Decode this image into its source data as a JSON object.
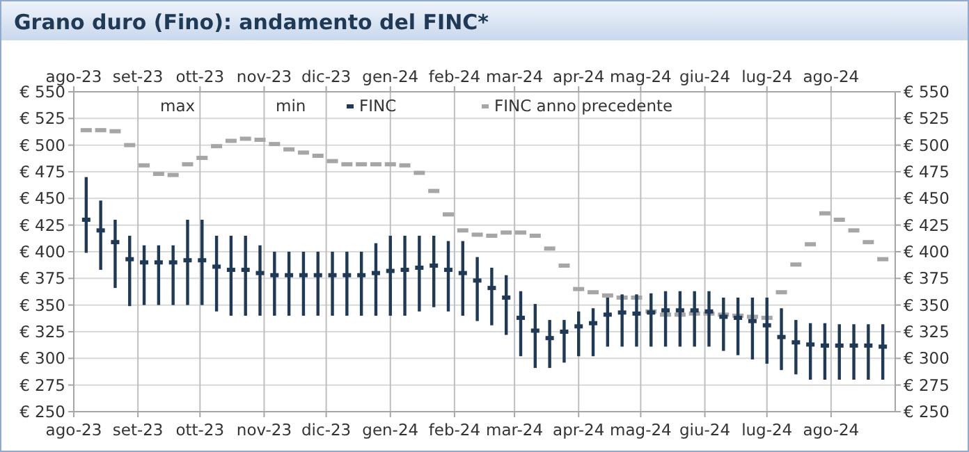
{
  "chart_data": {
    "type": "scatter",
    "title": "Grano duro (Fino): andamento del FINC*",
    "x": [
      "2023-08-07",
      "2023-08-14",
      "2023-08-21",
      "2023-08-28",
      "2023-09-04",
      "2023-09-11",
      "2023-09-18",
      "2023-09-25",
      "2023-10-02",
      "2023-10-09",
      "2023-10-16",
      "2023-10-23",
      "2023-10-30",
      "2023-11-06",
      "2023-11-13",
      "2023-11-20",
      "2023-11-27",
      "2023-12-04",
      "2023-12-11",
      "2023-12-18",
      "2023-12-25",
      "2024-01-01",
      "2024-01-08",
      "2024-01-15",
      "2024-01-22",
      "2024-01-29",
      "2024-02-05",
      "2024-02-12",
      "2024-02-19",
      "2024-02-26",
      "2024-03-04",
      "2024-03-11",
      "2024-03-18",
      "2024-03-25",
      "2024-04-01",
      "2024-04-08",
      "2024-04-15",
      "2024-04-22",
      "2024-04-29",
      "2024-05-06",
      "2024-05-13",
      "2024-05-20",
      "2024-05-27",
      "2024-06-03",
      "2024-06-10",
      "2024-06-17",
      "2024-06-24",
      "2024-07-01",
      "2024-07-08",
      "2024-07-15",
      "2024-07-22",
      "2024-07-29",
      "2024-08-05",
      "2024-08-12",
      "2024-08-19",
      "2024-08-26"
    ],
    "series": [
      {
        "name": "FINC",
        "color": "#1f3a56",
        "values": [
          430,
          420,
          409,
          393,
          390,
          390,
          390,
          392,
          392,
          386,
          383,
          383,
          380,
          378,
          378,
          378,
          378,
          378,
          378,
          378,
          380,
          382,
          383,
          385,
          387,
          383,
          380,
          373,
          366,
          357,
          338,
          326,
          319,
          325,
          330,
          333,
          341,
          343,
          342,
          343,
          345,
          345,
          345,
          344,
          339,
          338,
          335,
          331,
          320,
          315,
          313,
          312,
          312,
          312,
          312,
          311
        ],
        "errors": [
          [
            399,
            470
          ],
          [
            383,
            448
          ],
          [
            366,
            430
          ],
          [
            349,
            415
          ],
          [
            350,
            406
          ],
          [
            350,
            406
          ],
          [
            350,
            406
          ],
          [
            350,
            430
          ],
          [
            350,
            430
          ],
          [
            344,
            415
          ],
          [
            340,
            415
          ],
          [
            340,
            415
          ],
          [
            340,
            406
          ],
          [
            340,
            400
          ],
          [
            340,
            400
          ],
          [
            340,
            400
          ],
          [
            340,
            400
          ],
          [
            340,
            400
          ],
          [
            340,
            400
          ],
          [
            340,
            400
          ],
          [
            340,
            408
          ],
          [
            340,
            415
          ],
          [
            340,
            415
          ],
          [
            344,
            415
          ],
          [
            348,
            415
          ],
          [
            344,
            410
          ],
          [
            340,
            410
          ],
          [
            335,
            395
          ],
          [
            331,
            385
          ],
          [
            322,
            378
          ],
          [
            302,
            363
          ],
          [
            291,
            351
          ],
          [
            291,
            336
          ],
          [
            296,
            336
          ],
          [
            302,
            344
          ],
          [
            302,
            347
          ],
          [
            311,
            357
          ],
          [
            311,
            360
          ],
          [
            311,
            360
          ],
          [
            311,
            361
          ],
          [
            311,
            363
          ],
          [
            311,
            363
          ],
          [
            311,
            363
          ],
          [
            311,
            363
          ],
          [
            307,
            357
          ],
          [
            303,
            357
          ],
          [
            299,
            357
          ],
          [
            295,
            357
          ],
          [
            289,
            347
          ],
          [
            285,
            336
          ],
          [
            280,
            333
          ],
          [
            280,
            333
          ],
          [
            280,
            332
          ],
          [
            280,
            332
          ],
          [
            280,
            332
          ],
          [
            280,
            332
          ]
        ]
      },
      {
        "name": "FINC anno precedente",
        "color": "#a6a6a6",
        "values": [
          514,
          514,
          513,
          500,
          481,
          473,
          472,
          482,
          488,
          499,
          504,
          506,
          505,
          501,
          496,
          493,
          490,
          485,
          482,
          482,
          482,
          482,
          481,
          474,
          457,
          435,
          420,
          416,
          415,
          418,
          418,
          415,
          403,
          387,
          365,
          362,
          359,
          357,
          357,
          344,
          341,
          341,
          342,
          342,
          341,
          340,
          339,
          338,
          362,
          388,
          407,
          436,
          430,
          420,
          409,
          393
        ]
      }
    ],
    "annotations": [
      "max",
      "min"
    ],
    "xlim": [
      "2023-08-01",
      "2024-09-01"
    ],
    "xticks": [
      {
        "value": "2023-08-01",
        "label": "ago-23"
      },
      {
        "value": "2023-09-01",
        "label": "set-23"
      },
      {
        "value": "2023-10-01",
        "label": "ott-23"
      },
      {
        "value": "2023-11-01",
        "label": "nov-23"
      },
      {
        "value": "2023-12-01",
        "label": "dic-23"
      },
      {
        "value": "2024-01-01",
        "label": "gen-24"
      },
      {
        "value": "2024-02-01",
        "label": "feb-24"
      },
      {
        "value": "2024-03-01",
        "label": "mar-24"
      },
      {
        "value": "2024-04-01",
        "label": "apr-24"
      },
      {
        "value": "2024-05-01",
        "label": "mag-24"
      },
      {
        "value": "2024-06-01",
        "label": "giu-24"
      },
      {
        "value": "2024-07-01",
        "label": "lug-24"
      },
      {
        "value": "2024-08-01",
        "label": "ago-24"
      }
    ],
    "x2lim": [
      "2023-08-01",
      "2024-09-01"
    ],
    "x2ticks": [
      {
        "value": "2023-08-01",
        "label": "ago-23"
      },
      {
        "value": "2023-09-01",
        "label": "set-23"
      },
      {
        "value": "2023-10-01",
        "label": "ott-23"
      },
      {
        "value": "2023-11-01",
        "label": "nov-23"
      },
      {
        "value": "2023-12-01",
        "label": "dic-23"
      },
      {
        "value": "2024-01-01",
        "label": "gen-24"
      },
      {
        "value": "2024-02-01",
        "label": "feb-24"
      },
      {
        "value": "2024-03-01",
        "label": "mar-24"
      },
      {
        "value": "2024-04-01",
        "label": "apr-24"
      },
      {
        "value": "2024-05-01",
        "label": "mag-24"
      },
      {
        "value": "2024-06-01",
        "label": "giu-24"
      },
      {
        "value": "2024-07-01",
        "label": "lug-24"
      },
      {
        "value": "2024-08-01",
        "label": "ago-24"
      }
    ],
    "ylim": [
      250,
      550
    ],
    "yticks": [
      {
        "value": 250,
        "label": "€ 250"
      },
      {
        "value": 275,
        "label": "€ 275"
      },
      {
        "value": 300,
        "label": "€ 300"
      },
      {
        "value": 325,
        "label": "€ 325"
      },
      {
        "value": 350,
        "label": "€ 350"
      },
      {
        "value": 375,
        "label": "€ 375"
      },
      {
        "value": 400,
        "label": "€ 400"
      },
      {
        "value": 425,
        "label": "€ 425"
      },
      {
        "value": 450,
        "label": "€ 450"
      },
      {
        "value": 475,
        "label": "€ 475"
      },
      {
        "value": 500,
        "label": "€ 500"
      },
      {
        "value": 525,
        "label": "€ 525"
      },
      {
        "value": 550,
        "label": "€ 550"
      }
    ],
    "y2lim": [
      250,
      550
    ],
    "y2ticks": [
      {
        "value": 250,
        "label": "€ 250"
      },
      {
        "value": 275,
        "label": "€ 275"
      },
      {
        "value": 300,
        "label": "€ 300"
      },
      {
        "value": 325,
        "label": "€ 325"
      },
      {
        "value": 350,
        "label": "€ 350"
      },
      {
        "value": 375,
        "label": "€ 375"
      },
      {
        "value": 400,
        "label": "€ 400"
      },
      {
        "value": 425,
        "label": "€ 425"
      },
      {
        "value": 450,
        "label": "€ 450"
      },
      {
        "value": 475,
        "label": "€ 475"
      },
      {
        "value": 500,
        "label": "€ 500"
      },
      {
        "value": 525,
        "label": "€ 525"
      },
      {
        "value": 550,
        "label": "€ 550"
      }
    ],
    "grid": true,
    "legend": "top"
  }
}
